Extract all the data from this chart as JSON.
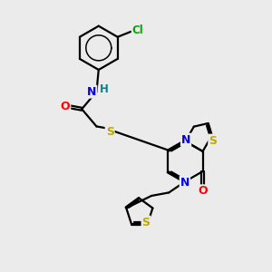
{
  "bg_color": "#ebebeb",
  "bond_color": "#000000",
  "bond_width": 1.6,
  "atom_colors": {
    "N": "#0000ee",
    "O": "#ff0000",
    "S": "#bbaa00",
    "Cl": "#00aa00",
    "H": "#008888"
  },
  "figsize": [
    3.0,
    3.0
  ],
  "dpi": 100
}
